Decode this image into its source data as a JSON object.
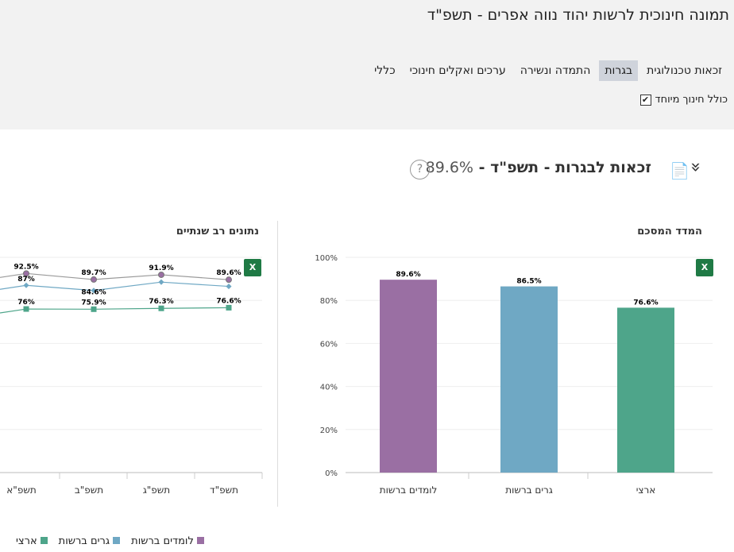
{
  "header": {
    "title": "תמונה חינוכית לרשות יהוד נווה אפרים - תשפ\"ד",
    "tabs": [
      {
        "label": "כללי"
      },
      {
        "label": "ערכים ואקלים חינוכי"
      },
      {
        "label": "התמדה ונשירה"
      },
      {
        "label": "בגרות",
        "active": true
      },
      {
        "label": "זכאות טכנולוגית"
      }
    ],
    "checkbox_label": "כולל חינוך מיוחד",
    "checkbox_checked": true
  },
  "section": {
    "title": "זכאות לבגרות - תשפ\"ד - ",
    "value": "89.6%",
    "help": "?"
  },
  "chart_data": [
    {
      "type": "bar",
      "title": "המדד המסכם",
      "categories": [
        "לומדים ברשות",
        "גרים ברשות",
        "ארצי"
      ],
      "values": [
        89.6,
        86.5,
        76.6
      ],
      "labels": [
        "89.6%",
        "86.5%",
        "76.6%"
      ],
      "colors": [
        "#9a6fa3",
        "#6fa8c4",
        "#4ea58a"
      ],
      "ylim": [
        0,
        100
      ],
      "yticks": [
        "0%",
        "20%",
        "40%",
        "60%",
        "80%",
        "100%"
      ]
    },
    {
      "type": "line",
      "title": "נתונים רב שנתיים",
      "categories": [
        "תשפ\"א",
        "תשפ\"ב",
        "תשפ\"ג",
        "תשפ\"ד"
      ],
      "ylim": [
        0,
        100
      ],
      "series": [
        {
          "name": "לומדים ברשות",
          "color": "#9a6fa3",
          "values": [
            92.5,
            89.7,
            91.9,
            89.6
          ],
          "labels": [
            "92.5%",
            "89.7%",
            "91.9%",
            "89.6%"
          ]
        },
        {
          "name": "גרים ברשות",
          "color": "#6fa8c4",
          "values": [
            87,
            84.6,
            88.5,
            86.5
          ],
          "labels": [
            "87%",
            "84.6%",
            "",
            ""
          ]
        },
        {
          "name": "ארצי",
          "color": "#4ea58a",
          "values": [
            76,
            75.9,
            76.3,
            76.6
          ],
          "labels": [
            "76%",
            "75.9%",
            "76.3%",
            "76.6%"
          ]
        }
      ]
    }
  ],
  "legend": [
    {
      "label": "ארצי",
      "color": "#4ea58a"
    },
    {
      "label": "גרים ברשות",
      "color": "#6fa8c4"
    },
    {
      "label": "לומדים ברשות",
      "color": "#9a6fa3"
    }
  ]
}
